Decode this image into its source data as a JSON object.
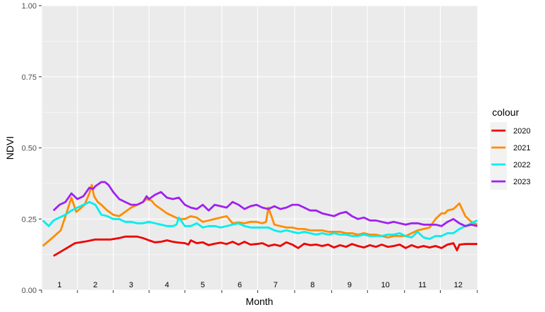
{
  "chart_data": {
    "type": "line",
    "xlabel": "Month",
    "ylabel": "NDVI",
    "ylim": [
      0,
      1
    ],
    "xlim": [
      0,
      365
    ],
    "y_ticks": [
      "0.00",
      "0.25",
      "0.50",
      "0.75",
      "1.00"
    ],
    "y_tick_values": [
      0,
      0.25,
      0.5,
      0.75,
      1.0
    ],
    "x_tick_labels": [
      "1",
      "2",
      "3",
      "4",
      "5",
      "6",
      "7",
      "8",
      "9",
      "10",
      "11",
      "12"
    ],
    "x_tick_label_days": [
      15,
      45,
      75,
      105,
      135,
      166,
      196,
      227,
      258,
      288,
      319,
      349
    ],
    "x_tick_mark_days": [
      0,
      30,
      60,
      90,
      120,
      151,
      181,
      212,
      243,
      273,
      304,
      334
    ],
    "grid": true,
    "legend": {
      "title": "colour",
      "position": "right"
    },
    "series": [
      {
        "name": "2020",
        "color": "#EE0000",
        "x": [
          10,
          20,
          28,
          38,
          45,
          52,
          58,
          65,
          70,
          75,
          80,
          85,
          90,
          95,
          100,
          105,
          110,
          115,
          120,
          123,
          125,
          130,
          135,
          140,
          145,
          150,
          155,
          160,
          165,
          170,
          175,
          180,
          185,
          190,
          195,
          200,
          205,
          210,
          215,
          220,
          225,
          230,
          235,
          240,
          245,
          250,
          255,
          260,
          265,
          270,
          275,
          280,
          285,
          290,
          295,
          300,
          305,
          310,
          315,
          320,
          325,
          330,
          335,
          340,
          345,
          348,
          350,
          355,
          365
        ],
        "y": [
          0.12,
          0.145,
          0.165,
          0.172,
          0.178,
          0.178,
          0.178,
          0.183,
          0.188,
          0.188,
          0.188,
          0.183,
          0.175,
          0.168,
          0.17,
          0.175,
          0.17,
          0.167,
          0.165,
          0.16,
          0.175,
          0.165,
          0.168,
          0.158,
          0.163,
          0.167,
          0.162,
          0.17,
          0.16,
          0.17,
          0.16,
          0.162,
          0.165,
          0.155,
          0.16,
          0.155,
          0.168,
          0.16,
          0.148,
          0.163,
          0.158,
          0.16,
          0.155,
          0.16,
          0.15,
          0.158,
          0.152,
          0.162,
          0.155,
          0.15,
          0.158,
          0.152,
          0.16,
          0.152,
          0.155,
          0.16,
          0.148,
          0.158,
          0.15,
          0.155,
          0.15,
          0.155,
          0.148,
          0.16,
          0.165,
          0.14,
          0.16,
          0.162,
          0.162
        ]
      },
      {
        "name": "2021",
        "color": "#FF8C00",
        "x": [
          1,
          8,
          12,
          16,
          20,
          25,
          29,
          32,
          36,
          40,
          42,
          44,
          47,
          50,
          55,
          60,
          65,
          70,
          75,
          80,
          85,
          88,
          92,
          95,
          100,
          105,
          110,
          115,
          120,
          125,
          130,
          135,
          140,
          145,
          150,
          155,
          160,
          165,
          170,
          175,
          180,
          185,
          188,
          190,
          195,
          200,
          205,
          210,
          215,
          220,
          225,
          230,
          235,
          240,
          245,
          250,
          255,
          260,
          265,
          270,
          275,
          280,
          285,
          290,
          295,
          300,
          305,
          310,
          315,
          320,
          325,
          330,
          335,
          338,
          340,
          345,
          350,
          355,
          360,
          365
        ],
        "y": [
          0.155,
          0.18,
          0.195,
          0.21,
          0.26,
          0.325,
          0.275,
          0.285,
          0.3,
          0.34,
          0.37,
          0.33,
          0.31,
          0.3,
          0.28,
          0.265,
          0.26,
          0.275,
          0.29,
          0.3,
          0.31,
          0.32,
          0.315,
          0.3,
          0.285,
          0.27,
          0.26,
          0.25,
          0.25,
          0.26,
          0.255,
          0.24,
          0.245,
          0.25,
          0.255,
          0.26,
          0.235,
          0.238,
          0.235,
          0.24,
          0.24,
          0.235,
          0.24,
          0.29,
          0.23,
          0.225,
          0.22,
          0.22,
          0.215,
          0.215,
          0.21,
          0.21,
          0.21,
          0.205,
          0.205,
          0.205,
          0.2,
          0.2,
          0.195,
          0.2,
          0.195,
          0.195,
          0.19,
          0.185,
          0.19,
          0.19,
          0.19,
          0.2,
          0.21,
          0.215,
          0.22,
          0.25,
          0.27,
          0.27,
          0.28,
          0.285,
          0.305,
          0.26,
          0.24,
          0.23
        ]
      },
      {
        "name": "2022",
        "color": "#00EEEE",
        "x": [
          1,
          6,
          10,
          15,
          20,
          25,
          30,
          35,
          38,
          40,
          45,
          50,
          55,
          60,
          65,
          70,
          75,
          80,
          85,
          90,
          95,
          100,
          105,
          110,
          113,
          115,
          120,
          125,
          130,
          135,
          140,
          145,
          150,
          155,
          160,
          165,
          170,
          175,
          180,
          185,
          190,
          195,
          200,
          205,
          210,
          215,
          220,
          225,
          230,
          235,
          240,
          245,
          250,
          255,
          260,
          265,
          270,
          275,
          280,
          285,
          290,
          295,
          300,
          305,
          310,
          315,
          320,
          325,
          330,
          335,
          340,
          345,
          350,
          355,
          360,
          365
        ],
        "y": [
          0.245,
          0.225,
          0.245,
          0.255,
          0.265,
          0.28,
          0.29,
          0.3,
          0.305,
          0.31,
          0.3,
          0.265,
          0.26,
          0.25,
          0.25,
          0.24,
          0.24,
          0.235,
          0.235,
          0.24,
          0.235,
          0.23,
          0.225,
          0.225,
          0.23,
          0.255,
          0.225,
          0.225,
          0.235,
          0.22,
          0.225,
          0.225,
          0.22,
          0.225,
          0.23,
          0.235,
          0.225,
          0.22,
          0.22,
          0.22,
          0.22,
          0.21,
          0.205,
          0.21,
          0.205,
          0.2,
          0.205,
          0.2,
          0.195,
          0.2,
          0.195,
          0.2,
          0.195,
          0.195,
          0.19,
          0.19,
          0.195,
          0.19,
          0.19,
          0.19,
          0.195,
          0.195,
          0.2,
          0.19,
          0.185,
          0.205,
          0.185,
          0.18,
          0.19,
          0.19,
          0.2,
          0.2,
          0.215,
          0.225,
          0.235,
          0.245
        ]
      },
      {
        "name": "2023",
        "color": "#A020F0",
        "x": [
          10,
          15,
          20,
          25,
          30,
          35,
          40,
          43,
          45,
          50,
          53,
          56,
          60,
          65,
          70,
          75,
          80,
          85,
          88,
          90,
          95,
          100,
          105,
          110,
          115,
          120,
          125,
          130,
          135,
          140,
          145,
          150,
          155,
          160,
          165,
          170,
          175,
          180,
          185,
          190,
          195,
          200,
          205,
          210,
          215,
          220,
          225,
          230,
          235,
          240,
          245,
          250,
          255,
          260,
          265,
          270,
          275,
          280,
          285,
          290,
          295,
          300,
          305,
          310,
          315,
          320,
          325,
          330,
          335,
          340,
          345,
          350,
          355,
          360,
          365
        ],
        "y": [
          0.28,
          0.3,
          0.31,
          0.34,
          0.32,
          0.33,
          0.36,
          0.355,
          0.365,
          0.38,
          0.38,
          0.37,
          0.345,
          0.32,
          0.31,
          0.3,
          0.3,
          0.31,
          0.33,
          0.32,
          0.335,
          0.345,
          0.325,
          0.32,
          0.325,
          0.3,
          0.29,
          0.285,
          0.3,
          0.28,
          0.3,
          0.295,
          0.29,
          0.31,
          0.3,
          0.285,
          0.295,
          0.3,
          0.29,
          0.285,
          0.295,
          0.285,
          0.29,
          0.3,
          0.3,
          0.29,
          0.28,
          0.28,
          0.27,
          0.265,
          0.26,
          0.27,
          0.275,
          0.26,
          0.25,
          0.255,
          0.245,
          0.245,
          0.24,
          0.235,
          0.24,
          0.235,
          0.23,
          0.235,
          0.235,
          0.23,
          0.23,
          0.23,
          0.225,
          0.24,
          0.25,
          0.235,
          0.225,
          0.23,
          0.225
        ]
      }
    ]
  }
}
